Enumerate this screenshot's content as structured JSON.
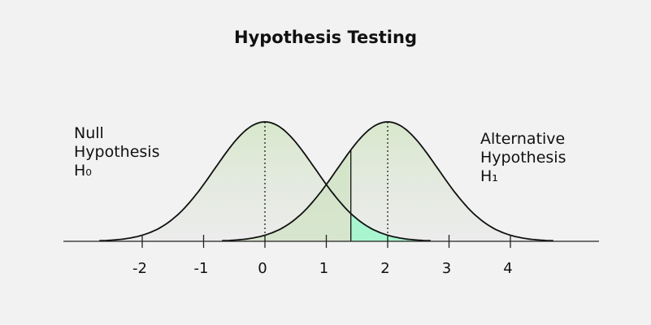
{
  "title": "Hypothesis Testing",
  "null_hypothesis": {
    "lines": [
      "Null",
      "Hypothesis",
      "H₀"
    ],
    "mean": 0
  },
  "alternative_hypothesis": {
    "lines": [
      "Alternative",
      "Hypothesis",
      "H₁"
    ],
    "mean": 2
  },
  "axis": {
    "ticks": [
      {
        "value": -2,
        "label": "-2"
      },
      {
        "value": -1,
        "label": "-1"
      },
      {
        "value": 0,
        "label": "0"
      },
      {
        "value": 1,
        "label": "1"
      },
      {
        "value": 2,
        "label": "2"
      },
      {
        "value": 3,
        "label": "3"
      },
      {
        "value": 4,
        "label": "4"
      }
    ]
  },
  "critical_value": 1.4,
  "colors": {
    "curve": "#111111",
    "null_fill": "#d9e8cf",
    "alt_fill": "#d9e8cf",
    "beta_region": "#cfe2c2",
    "power_region": "#a8f5cf",
    "axis": "#222222"
  }
}
